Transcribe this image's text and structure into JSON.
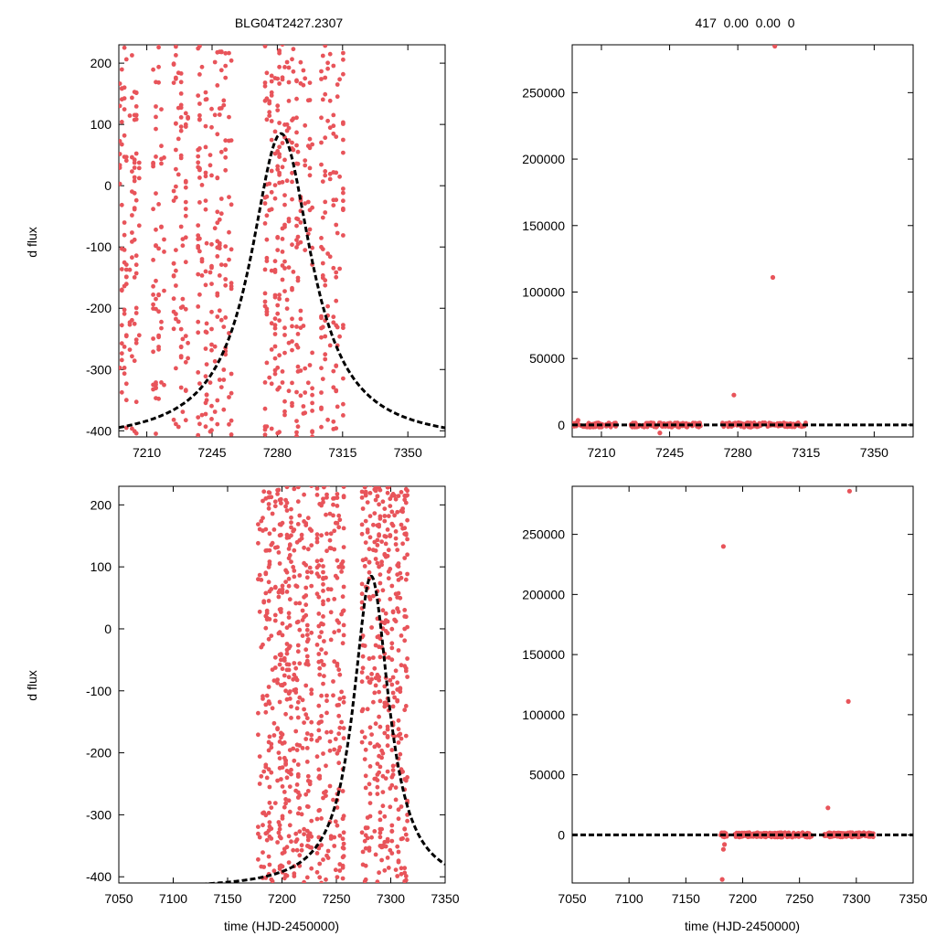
{
  "figure": {
    "title_left": "BLG04T2427.2307",
    "title_right": "417  0.00  0.00  0",
    "ylabel": "d flux",
    "xlabel": "time (HJD-2450000)",
    "point_color": "#e8545a",
    "model_color": "#000000"
  },
  "chart_data": [
    {
      "type": "scatter",
      "panel": "top-left",
      "xlim": [
        7195,
        7370
      ],
      "ylim": [
        -410,
        230
      ],
      "xticks": [
        7210,
        7245,
        7280,
        7315,
        7350
      ],
      "yticks": [
        -400,
        -300,
        -200,
        -100,
        0,
        100,
        200
      ],
      "xtick_labels": [
        "7210",
        "7245",
        "7280",
        "7315",
        "7350"
      ],
      "ytick_labels": [
        "-400",
        "-300",
        "-200",
        "-100",
        "0",
        "100",
        "200"
      ],
      "ylabel": "d flux",
      "model": {
        "t0": 7282,
        "peak": 85,
        "base": -420,
        "amp": 505,
        "tau": 20
      },
      "observation_seasons": [
        [
          7195,
          7207
        ],
        [
          7213,
          7220
        ],
        [
          7224,
          7233
        ],
        [
          7237,
          7256
        ],
        [
          7273,
          7300
        ],
        [
          7303,
          7316
        ]
      ]
    },
    {
      "type": "scatter",
      "panel": "top-right",
      "xlim": [
        7195,
        7370
      ],
      "ylim": [
        -9000,
        286000
      ],
      "xticks": [
        7210,
        7245,
        7280,
        7315,
        7350
      ],
      "yticks": [
        0,
        50000,
        100000,
        150000,
        200000,
        250000
      ],
      "xtick_labels": [
        "7210",
        "7245",
        "7280",
        "7315",
        "7350"
      ],
      "ytick_labels": [
        "0",
        "50000",
        "100000",
        "150000",
        "200000",
        "250000"
      ],
      "outliers": [
        {
          "x": 7299,
          "y": 285000
        },
        {
          "x": 7298,
          "y": 111000
        },
        {
          "x": 7278,
          "y": 22500
        },
        {
          "x": 7198,
          "y": 3500
        },
        {
          "x": 7240,
          "y": -6000
        }
      ],
      "observation_seasons": [
        [
          7195,
          7218
        ],
        [
          7225,
          7262
        ],
        [
          7272,
          7315
        ]
      ]
    },
    {
      "type": "scatter",
      "panel": "bottom-left",
      "xlim": [
        7050,
        7350
      ],
      "ylim": [
        -410,
        230
      ],
      "xticks": [
        7050,
        7100,
        7150,
        7200,
        7250,
        7300,
        7350
      ],
      "yticks": [
        -400,
        -300,
        -200,
        -100,
        0,
        100,
        200
      ],
      "xtick_labels": [
        "7050",
        "7100",
        "7150",
        "7200",
        "7250",
        "7300",
        "7350"
      ],
      "ytick_labels": [
        "-400",
        "-300",
        "-200",
        "-100",
        "0",
        "100",
        "200"
      ],
      "ylabel": "d flux",
      "xlabel": "time (HJD-2450000)",
      "model": {
        "t0": 7282,
        "peak": 85,
        "base": -420,
        "amp": 505,
        "tau": 20
      },
      "observation_seasons": [
        [
          7178,
          7228
        ],
        [
          7232,
          7258
        ],
        [
          7273,
          7316
        ]
      ]
    },
    {
      "type": "scatter",
      "panel": "bottom-right",
      "xlim": [
        7050,
        7350
      ],
      "ylim": [
        -40000,
        290000
      ],
      "xticks": [
        7050,
        7100,
        7150,
        7200,
        7250,
        7300,
        7350
      ],
      "yticks": [
        0,
        50000,
        100000,
        150000,
        200000,
        250000
      ],
      "xtick_labels": [
        "7050",
        "7100",
        "7150",
        "7200",
        "7250",
        "7300",
        "7350"
      ],
      "ytick_labels": [
        "0",
        "50000",
        "100000",
        "150000",
        "200000",
        "250000"
      ],
      "xlabel": "time (HJD-2450000)",
      "outliers": [
        {
          "x": 7183,
          "y": 240000
        },
        {
          "x": 7294,
          "y": 286000
        },
        {
          "x": 7293,
          "y": 111000
        },
        {
          "x": 7275,
          "y": 22500
        },
        {
          "x": 7182,
          "y": -37000
        },
        {
          "x": 7183,
          "y": -12000
        },
        {
          "x": 7184,
          "y": -8000
        }
      ],
      "observation_seasons": [
        [
          7180,
          7186
        ],
        [
          7193,
          7262
        ],
        [
          7272,
          7315
        ]
      ]
    }
  ]
}
